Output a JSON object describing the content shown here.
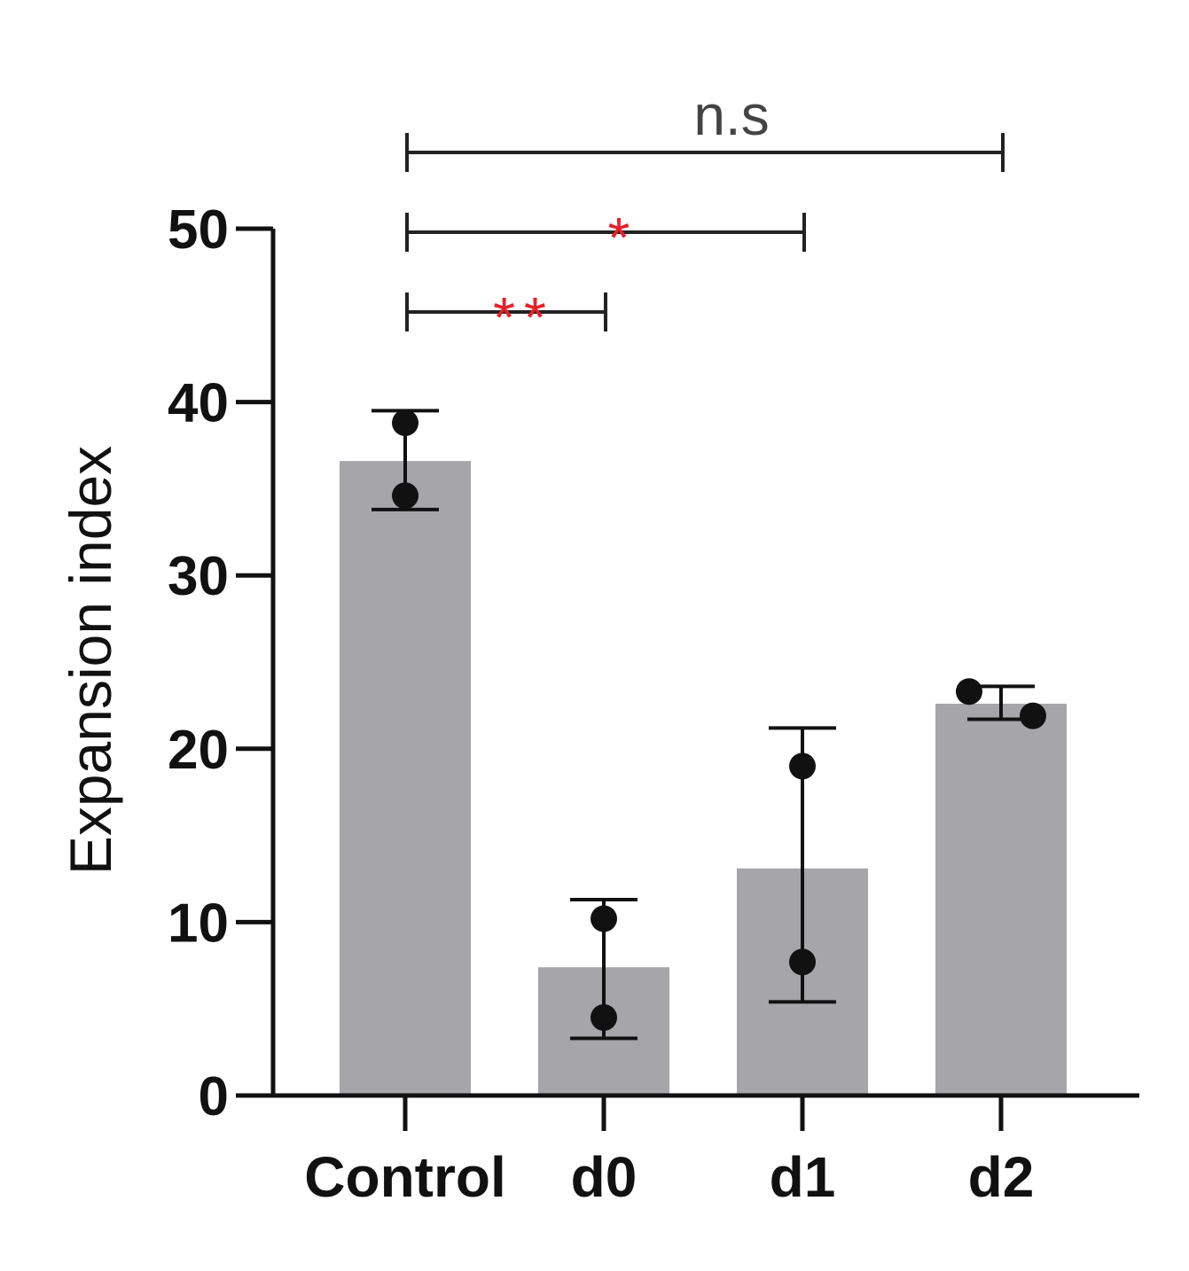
{
  "chart_data": {
    "type": "bar",
    "title": "",
    "xlabel": "",
    "ylabel": "Expansion index",
    "ylim": [
      0,
      50
    ],
    "yticks": [
      0,
      10,
      20,
      30,
      40,
      50
    ],
    "grid": false,
    "categories": [
      "Control",
      "d0",
      "d1",
      "d2"
    ],
    "values": [
      36.6,
      7.4,
      13.1,
      22.6
    ],
    "error_low": [
      33.8,
      3.3,
      5.4,
      21.7
    ],
    "error_high": [
      39.5,
      11.3,
      21.2,
      23.6
    ],
    "points": [
      [
        34.6,
        38.8
      ],
      [
        4.5,
        10.2
      ],
      [
        7.7,
        19.0
      ],
      [
        23.3,
        21.9
      ]
    ],
    "bar_color": "#a6a5aa",
    "significance": [
      {
        "from": "Control",
        "to": "d2",
        "label": "n.s",
        "color": "#444444"
      },
      {
        "from": "Control",
        "to": "d1",
        "label": "*",
        "color": "#e8202a"
      },
      {
        "from": "Control",
        "to": "d0",
        "label": "**",
        "color": "#e8202a"
      }
    ]
  }
}
